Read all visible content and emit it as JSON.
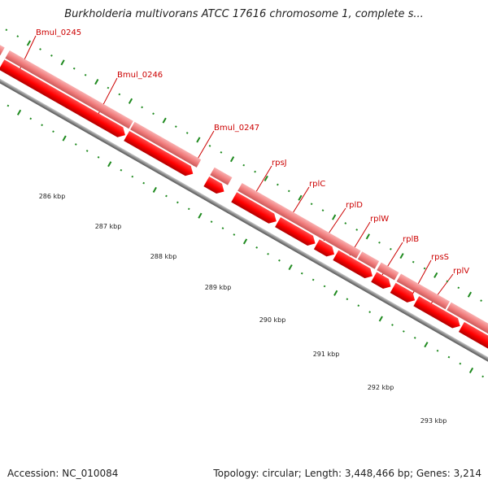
{
  "title": "Burkholderia multivorans ATCC 17616 chromosome 1, complete s...",
  "footer": {
    "accession": "Accession: NC_010084",
    "summary": "Topology: circular; Length: 3,448,466 bp; Genes: 3,214"
  },
  "colors": {
    "gene_dark": "#ff0000",
    "gene_light": "#f07b7b",
    "backbone": "#808080",
    "ticks": "#1f8a1f",
    "label": "#cc0000"
  },
  "genes": [
    {
      "name": "Bmul_0245"
    },
    {
      "name": "Bmul_0246"
    },
    {
      "name": "Bmul_0247"
    },
    {
      "name": "rpsJ"
    },
    {
      "name": "rplC"
    },
    {
      "name": "rplD"
    },
    {
      "name": "rplW"
    },
    {
      "name": "rplB"
    },
    {
      "name": "rpsS"
    },
    {
      "name": "rplV"
    }
  ],
  "scale_labels": [
    "286 kbp",
    "287 kbp",
    "288 kbp",
    "289 kbp",
    "290 kbp",
    "291 kbp",
    "292 kbp",
    "293 kbp"
  ]
}
